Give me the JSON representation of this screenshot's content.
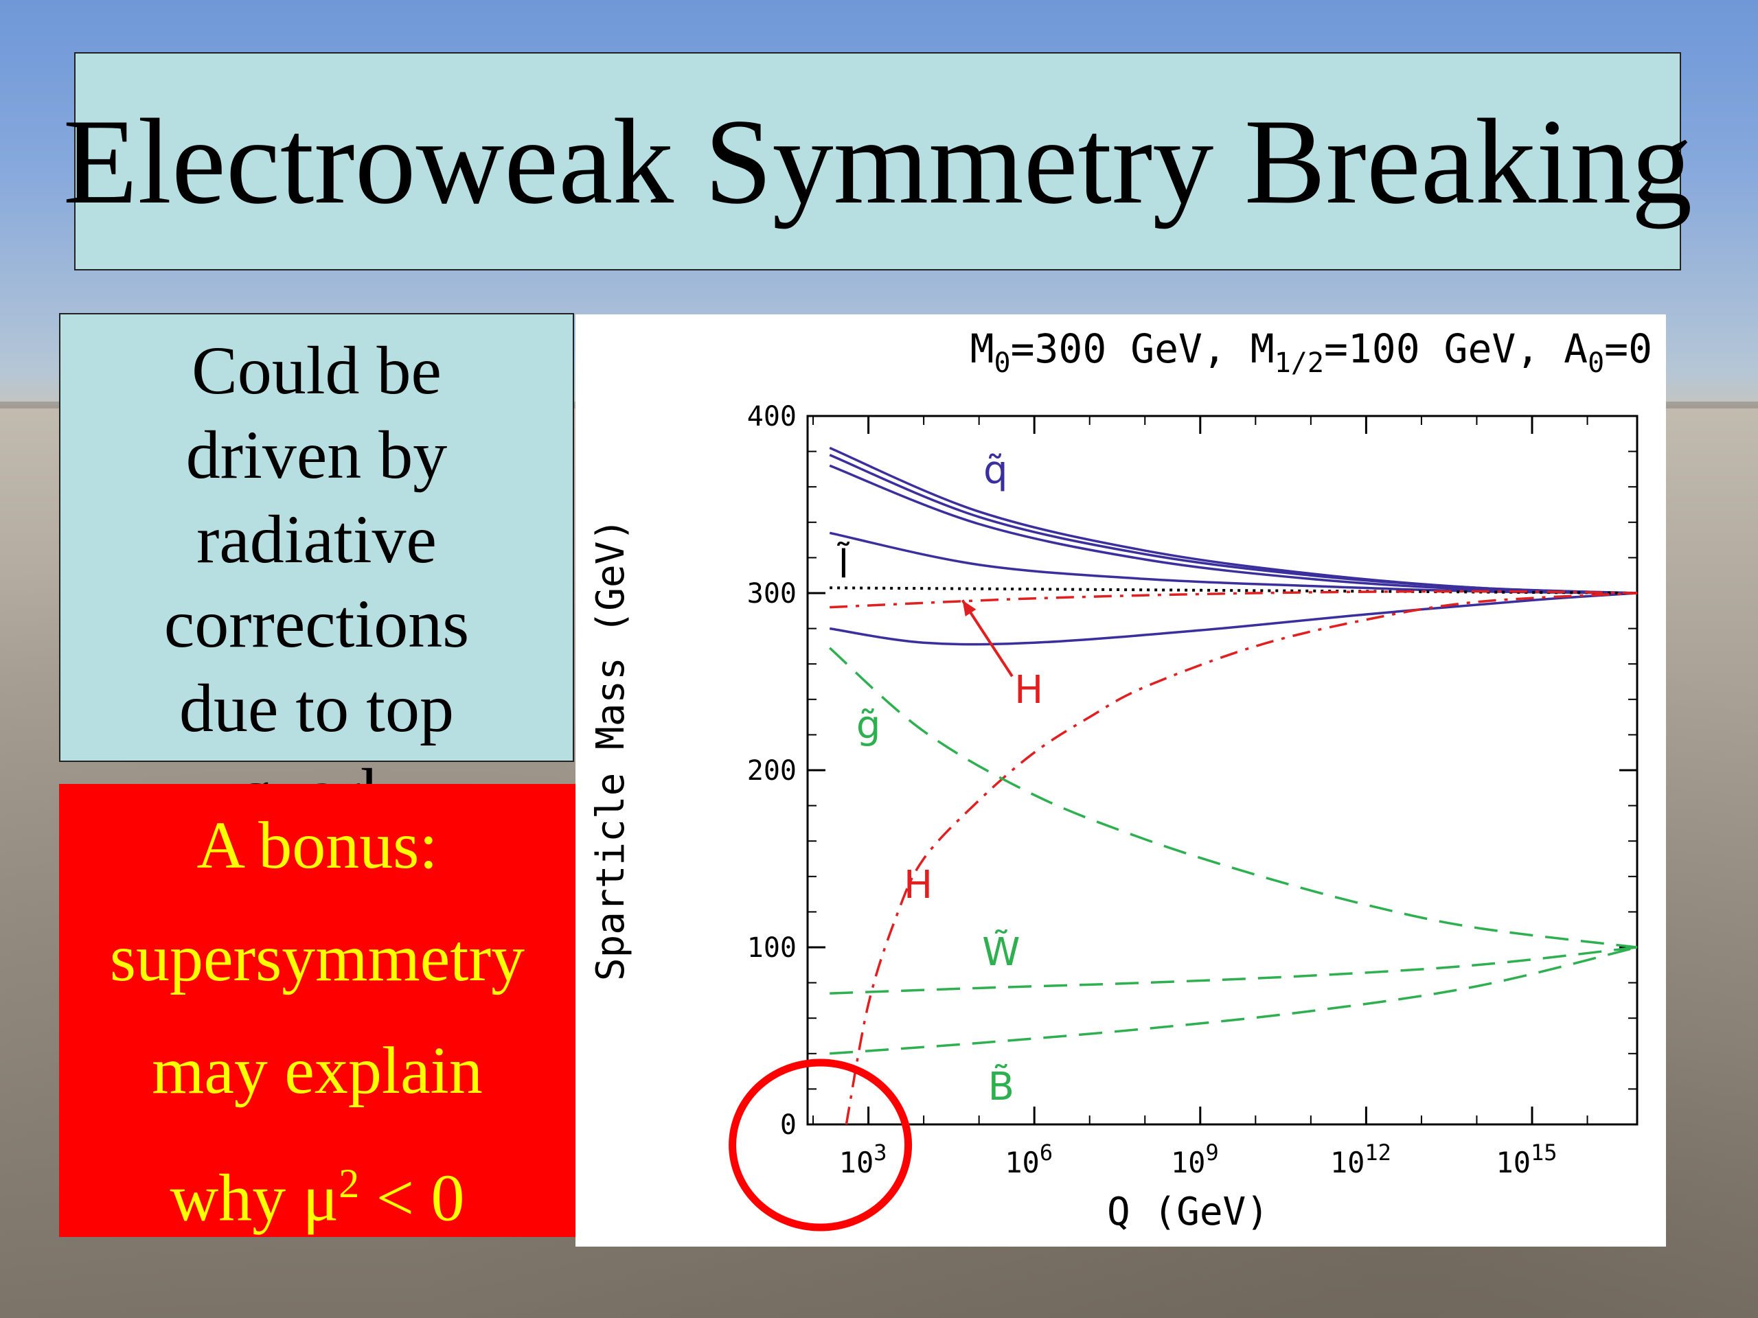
{
  "slide": {
    "title": "Electroweak Symmetry Breaking",
    "note_lines": [
      "Could be",
      "driven by",
      "radiative",
      "corrections",
      "due to top",
      "quark"
    ],
    "bonus_lines": [
      "A bonus:",
      "supersymmetry",
      "may explain"
    ],
    "bonus_last_prefix": "why μ",
    "bonus_last_sup": "2",
    "bonus_last_suffix": " < 0",
    "colors": {
      "title_bg": "#b7dfe2",
      "bonus_bg": "#ff0000",
      "bonus_text": "#ffff00"
    }
  },
  "chart_data": {
    "type": "line",
    "title_parts": [
      "M",
      "0",
      "=300 GeV, M",
      "1/2",
      "=100 GeV, A",
      "0",
      "=0"
    ],
    "xlabel": "Q (GeV)",
    "ylabel": "Sparticle Mass (GeV)",
    "x_scale": "log",
    "xlim_log10": [
      1.9,
      16.9
    ],
    "ylim": [
      0,
      400
    ],
    "y_ticks": [
      "0",
      "100",
      "200",
      "300",
      "400"
    ],
    "x_tick_labels": [
      {
        "base": "10",
        "exp": "3",
        "log10": 3
      },
      {
        "base": "10",
        "exp": "6",
        "log10": 6
      },
      {
        "base": "10",
        "exp": "9",
        "log10": 9
      },
      {
        "base": "10",
        "exp": "12",
        "log10": 12
      },
      {
        "base": "10",
        "exp": "15",
        "log10": 15
      }
    ],
    "colors": {
      "squarks": "#3a2f9c",
      "higgs": "#e02020",
      "gauginos": "#2fb050",
      "slepton_ref": "#000000"
    },
    "series": [
      {
        "group": "squarks",
        "style": "solid",
        "log10Q": [
          2.3,
          5,
          8,
          11,
          14,
          16.9
        ],
        "mass": [
          382,
          346,
          324,
          311,
          303,
          300
        ]
      },
      {
        "group": "squarks",
        "style": "solid",
        "log10Q": [
          2.3,
          5,
          8,
          11,
          14,
          16.9
        ],
        "mass": [
          378,
          343,
          322,
          310,
          303,
          300
        ]
      },
      {
        "group": "squarks",
        "style": "solid",
        "log10Q": [
          2.3,
          5,
          8,
          11,
          14,
          16.9
        ],
        "mass": [
          372,
          339,
          319,
          308,
          302,
          300
        ]
      },
      {
        "group": "squarks",
        "style": "solid",
        "log10Q": [
          2.3,
          5,
          8,
          11,
          14,
          16.9
        ],
        "mass": [
          334,
          316,
          308,
          304,
          301,
          300
        ]
      },
      {
        "group": "squarks",
        "style": "solid",
        "log10Q": [
          2.3,
          4,
          6,
          9,
          12,
          15,
          16.9
        ],
        "mass": [
          280,
          272,
          272,
          279,
          288,
          296,
          300
        ]
      },
      {
        "group": "slepton_ref",
        "style": "dotted",
        "log10Q": [
          2.3,
          16.9
        ],
        "mass": [
          303,
          300
        ]
      },
      {
        "group": "higgs",
        "style": "dashdot",
        "log10Q": [
          2.3,
          6,
          10,
          14,
          16.9
        ],
        "mass": [
          292,
          297,
          300,
          301,
          300
        ]
      },
      {
        "group": "higgs",
        "style": "dashdot",
        "log10Q": [
          2.6,
          3.0,
          3.5,
          4,
          5,
          6,
          7,
          8,
          10,
          12,
          14,
          16.9
        ],
        "mass": [
          0,
          68,
          117,
          150,
          183,
          210,
          230,
          247,
          270,
          285,
          295,
          300
        ]
      },
      {
        "group": "gauginos",
        "style": "dashed",
        "log10Q": [
          2.3,
          4,
          6,
          8,
          10,
          12,
          14,
          16.9
        ],
        "mass": [
          269,
          222,
          186,
          161,
          141,
          124,
          111,
          100
        ]
      },
      {
        "group": "gauginos",
        "style": "dashed",
        "log10Q": [
          2.3,
          5,
          8,
          11,
          14,
          16.9
        ],
        "mass": [
          74,
          77,
          80,
          84,
          90,
          100
        ]
      },
      {
        "group": "gauginos",
        "style": "dashed",
        "log10Q": [
          2.3,
          5,
          8,
          11,
          14,
          16.9
        ],
        "mass": [
          40,
          46,
          54,
          64,
          78,
          100
        ]
      }
    ],
    "curve_labels": [
      {
        "text": "q̃",
        "group": "squarks",
        "log10Q": 5.3,
        "mass": 362
      },
      {
        "text": "l̃",
        "group": "slepton_ref",
        "log10Q": 2.55,
        "mass": 309
      },
      {
        "text": "H",
        "group": "higgs",
        "log10Q": 5.9,
        "mass": 238
      },
      {
        "text": "g̃",
        "group": "gauginos",
        "log10Q": 3.0,
        "mass": 218
      },
      {
        "text": "H",
        "group": "higgs",
        "log10Q": 3.9,
        "mass": 128
      },
      {
        "text": "W̃",
        "group": "gauginos",
        "log10Q": 5.4,
        "mass": 90
      },
      {
        "text": "B̃",
        "group": "gauginos",
        "log10Q": 5.4,
        "mass": 14
      }
    ],
    "arrow": {
      "from_log10Q": 5.6,
      "from_mass": 253,
      "to_log10Q": 4.7,
      "to_mass": 296
    },
    "highlight_circle": {
      "log10Q": 3.0,
      "mass": 0
    }
  }
}
